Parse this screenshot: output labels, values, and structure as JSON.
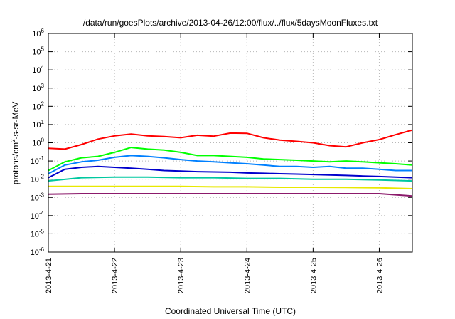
{
  "chart_data": {
    "type": "line",
    "title": "/data/run/goesPlots/archive/2013-04-26/12:00/flux/../flux/5daysMoonFluxes.txt",
    "xlabel": "Coordinated Universal Time (UTC)",
    "ylabel": {
      "prefix": "protons/cm",
      "sup": "2",
      "suffix": "-s-sr-MeV"
    },
    "xlim": [
      "2013-04-21T00:00",
      "2013-04-26T12:00"
    ],
    "ylim": [
      1e-06,
      1000000.0
    ],
    "yscale": "log",
    "grid": true,
    "legend": "none",
    "x_ticks": [
      "2013-4-21",
      "2013-4-22",
      "2013-4-23",
      "2013-4-24",
      "2013-4-25",
      "2013-4-26"
    ],
    "y_ticks": [
      {
        "base": "10",
        "exp": "6",
        "value": 1000000.0
      },
      {
        "base": "10",
        "exp": "5",
        "value": 100000.0
      },
      {
        "base": "10",
        "exp": "4",
        "value": 10000.0
      },
      {
        "base": "10",
        "exp": "3",
        "value": 1000.0
      },
      {
        "base": "10",
        "exp": "2",
        "value": 100.0
      },
      {
        "base": "10",
        "exp": "1",
        "value": 10.0
      },
      {
        "base": "10",
        "exp": "0",
        "value": 1
      },
      {
        "base": "10",
        "exp": "-1",
        "value": 0.1
      },
      {
        "base": "10",
        "exp": "-2",
        "value": 0.01
      },
      {
        "base": "10",
        "exp": "-3",
        "value": 0.001
      },
      {
        "base": "10",
        "exp": "-4",
        "value": 0.0001
      },
      {
        "base": "10",
        "exp": "-5",
        "value": 1e-05
      },
      {
        "base": "10",
        "exp": "-6",
        "value": 1e-06
      }
    ],
    "series": [
      {
        "color": "#ff0000",
        "x": [
          "2013-04-21T00:00",
          "2013-04-21T06:00",
          "2013-04-21T12:00",
          "2013-04-21T18:00",
          "2013-04-22T00:00",
          "2013-04-22T06:00",
          "2013-04-22T12:00",
          "2013-04-22T18:00",
          "2013-04-23T00:00",
          "2013-04-23T06:00",
          "2013-04-23T12:00",
          "2013-04-23T18:00",
          "2013-04-24T00:00",
          "2013-04-24T06:00",
          "2013-04-24T12:00",
          "2013-04-24T18:00",
          "2013-04-25T00:00",
          "2013-04-25T06:00",
          "2013-04-25T12:00",
          "2013-04-25T18:00",
          "2013-04-26T00:00",
          "2013-04-26T06:00",
          "2013-04-26T12:00"
        ],
        "values": [
          0.5,
          0.45,
          0.8,
          1.6,
          2.4,
          3.0,
          2.4,
          2.2,
          1.9,
          2.6,
          2.3,
          3.4,
          3.3,
          1.9,
          1.4,
          1.2,
          1.0,
          0.7,
          0.6,
          1.0,
          1.5,
          2.8,
          5.0
        ]
      },
      {
        "color": "#00ff00",
        "x": [
          "2013-04-21T00:00",
          "2013-04-21T06:00",
          "2013-04-21T12:00",
          "2013-04-21T18:00",
          "2013-04-22T00:00",
          "2013-04-22T06:00",
          "2013-04-22T12:00",
          "2013-04-22T18:00",
          "2013-04-23T00:00",
          "2013-04-23T06:00",
          "2013-04-23T12:00",
          "2013-04-23T18:00",
          "2013-04-24T00:00",
          "2013-04-24T06:00",
          "2013-04-24T12:00",
          "2013-04-24T18:00",
          "2013-04-25T00:00",
          "2013-04-25T06:00",
          "2013-04-25T12:00",
          "2013-04-25T18:00",
          "2013-04-26T00:00",
          "2013-04-26T06:00",
          "2013-04-26T12:00"
        ],
        "values": [
          0.03,
          0.09,
          0.15,
          0.18,
          0.3,
          0.55,
          0.45,
          0.4,
          0.3,
          0.2,
          0.2,
          0.18,
          0.16,
          0.13,
          0.12,
          0.11,
          0.1,
          0.09,
          0.1,
          0.09,
          0.08,
          0.07,
          0.06
        ]
      },
      {
        "color": "#0080ff",
        "x": [
          "2013-04-21T00:00",
          "2013-04-21T06:00",
          "2013-04-21T12:00",
          "2013-04-21T18:00",
          "2013-04-22T00:00",
          "2013-04-22T06:00",
          "2013-04-22T12:00",
          "2013-04-22T18:00",
          "2013-04-23T00:00",
          "2013-04-23T06:00",
          "2013-04-23T12:00",
          "2013-04-23T18:00",
          "2013-04-24T00:00",
          "2013-04-24T06:00",
          "2013-04-24T12:00",
          "2013-04-24T18:00",
          "2013-04-25T00:00",
          "2013-04-25T06:00",
          "2013-04-25T12:00",
          "2013-04-25T18:00",
          "2013-04-26T00:00",
          "2013-04-26T06:00",
          "2013-04-26T12:00"
        ],
        "values": [
          0.02,
          0.06,
          0.09,
          0.11,
          0.16,
          0.2,
          0.18,
          0.15,
          0.12,
          0.1,
          0.09,
          0.08,
          0.07,
          0.06,
          0.05,
          0.05,
          0.045,
          0.05,
          0.04,
          0.04,
          0.035,
          0.03,
          0.03
        ]
      },
      {
        "color": "#0000cc",
        "x": [
          "2013-04-21T00:00",
          "2013-04-21T06:00",
          "2013-04-21T12:00",
          "2013-04-21T18:00",
          "2013-04-22T00:00",
          "2013-04-22T06:00",
          "2013-04-22T12:00",
          "2013-04-22T18:00",
          "2013-04-23T00:00",
          "2013-04-23T06:00",
          "2013-04-23T12:00",
          "2013-04-23T18:00",
          "2013-04-24T00:00",
          "2013-04-24T06:00",
          "2013-04-24T12:00",
          "2013-04-24T18:00",
          "2013-04-25T00:00",
          "2013-04-25T06:00",
          "2013-04-25T12:00",
          "2013-04-25T18:00",
          "2013-04-26T00:00",
          "2013-04-26T06:00",
          "2013-04-26T12:00"
        ],
        "values": [
          0.012,
          0.035,
          0.045,
          0.05,
          0.045,
          0.04,
          0.035,
          0.03,
          0.028,
          0.026,
          0.025,
          0.024,
          0.022,
          0.021,
          0.02,
          0.019,
          0.018,
          0.017,
          0.016,
          0.015,
          0.014,
          0.013,
          0.012
        ]
      },
      {
        "color": "#00c8a0",
        "x": [
          "2013-04-21T00:00",
          "2013-04-21T12:00",
          "2013-04-22T00:00",
          "2013-04-22T12:00",
          "2013-04-23T00:00",
          "2013-04-23T12:00",
          "2013-04-24T00:00",
          "2013-04-24T12:00",
          "2013-04-25T00:00",
          "2013-04-25T12:00",
          "2013-04-26T00:00",
          "2013-04-26T12:00"
        ],
        "values": [
          0.008,
          0.012,
          0.013,
          0.013,
          0.012,
          0.012,
          0.011,
          0.011,
          0.01,
          0.01,
          0.009,
          0.008
        ]
      },
      {
        "color": "#e8e800",
        "x": [
          "2013-04-21T00:00",
          "2013-04-21T12:00",
          "2013-04-22T00:00",
          "2013-04-22T12:00",
          "2013-04-23T00:00",
          "2013-04-23T12:00",
          "2013-04-24T00:00",
          "2013-04-24T12:00",
          "2013-04-25T00:00",
          "2013-04-25T12:00",
          "2013-04-26T00:00",
          "2013-04-26T12:00"
        ],
        "values": [
          0.004,
          0.004,
          0.004,
          0.004,
          0.004,
          0.0038,
          0.0038,
          0.0036,
          0.0036,
          0.0035,
          0.0034,
          0.003
        ]
      },
      {
        "color": "#8b1a6b",
        "x": [
          "2013-04-21T00:00",
          "2013-04-21T12:00",
          "2013-04-22T00:00",
          "2013-04-22T12:00",
          "2013-04-23T00:00",
          "2013-04-23T12:00",
          "2013-04-24T00:00",
          "2013-04-24T12:00",
          "2013-04-25T00:00",
          "2013-04-25T12:00",
          "2013-04-26T00:00",
          "2013-04-26T12:00"
        ],
        "values": [
          0.0015,
          0.0016,
          0.0016,
          0.0016,
          0.0016,
          0.0016,
          0.0016,
          0.0016,
          0.0016,
          0.0016,
          0.0016,
          0.0012
        ]
      }
    ]
  }
}
